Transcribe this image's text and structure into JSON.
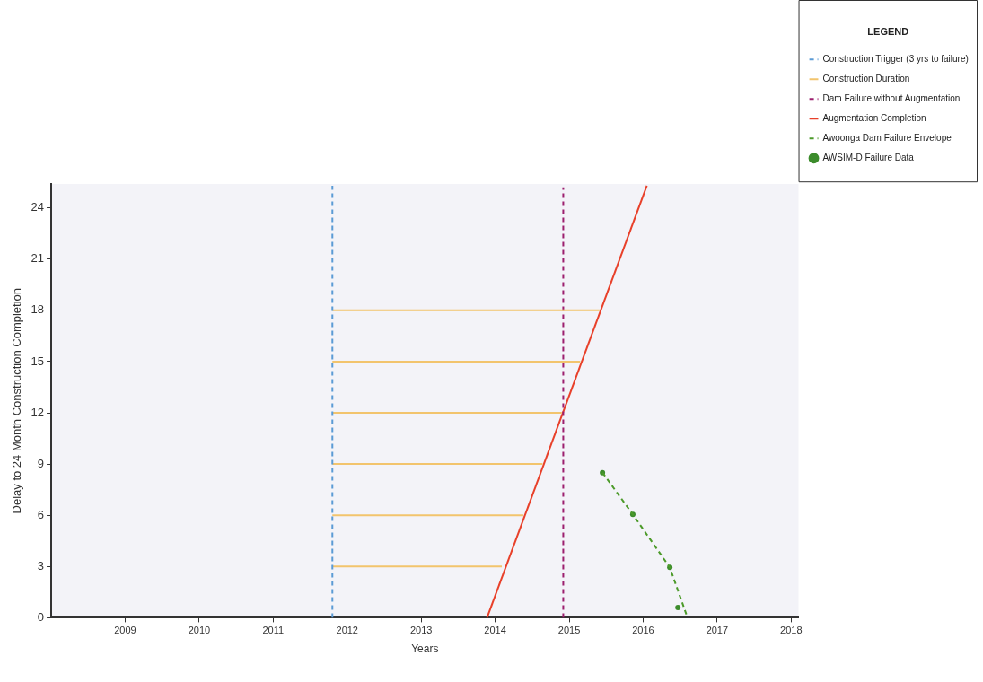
{
  "chart_data": {
    "type": "line",
    "xlabel": "Years",
    "ylabel": "Delay to 24 Month Construction Completion",
    "legend_title": "LEGEND",
    "legend": "top right",
    "grid": false,
    "marker": "none",
    "xlim": [
      2008,
      2018.1
    ],
    "xticks": [
      2009,
      2010,
      2011,
      2012,
      2013,
      2014,
      2015,
      2016,
      2017,
      2018
    ],
    "ylim": [
      0,
      25.4
    ],
    "yticks": [
      0,
      3,
      6,
      9,
      12,
      15,
      18,
      21,
      24
    ],
    "series": [
      {
        "name": "Construction Trigger\n(3 yrs to failure)",
        "color": "#5b9bd5",
        "line_style": "dashed",
        "x": [
          2011.8,
          2011.8
        ],
        "values": [
          0,
          25.3
        ]
      },
      {
        "name": "Construction Duration",
        "color": "#f2c46d",
        "line_style": "solid",
        "x": [
          2011.8,
          2014.09
        ],
        "values": [
          3,
          3
        ]
      },
      {
        "color": "#f2c46d",
        "line_style": "solid",
        "x": [
          2011.8,
          2014.38
        ],
        "values": [
          6,
          6
        ]
      },
      {
        "color": "#f2c46d",
        "line_style": "solid",
        "x": [
          2011.8,
          2014.64
        ],
        "values": [
          9,
          9
        ]
      },
      {
        "color": "#f2c46d",
        "line_style": "solid",
        "x": [
          2011.8,
          2014.9
        ],
        "values": [
          12,
          12
        ]
      },
      {
        "color": "#f2c46d",
        "line_style": "solid",
        "x": [
          2011.8,
          2015.15
        ],
        "values": [
          15,
          15
        ]
      },
      {
        "color": "#f2c46d",
        "line_style": "solid",
        "x": [
          2011.8,
          2015.41
        ],
        "values": [
          18,
          18
        ]
      },
      {
        "name": "Dam Failure without\nAugmentation",
        "color": "#9c1f6e",
        "line_style": "dashed",
        "x": [
          2014.92,
          2014.92
        ],
        "values": [
          0,
          25.2
        ]
      },
      {
        "name": "Augmentation Completion",
        "color": "#e8402a",
        "line_style": "solid",
        "x": [
          2013.89,
          2016.05
        ],
        "values": [
          0,
          25.3
        ]
      },
      {
        "name": "Awoonga Dam Failure Envelope",
        "color": "#4c9a2a",
        "line_style": "dashed",
        "x": [
          2015.45,
          2015.86,
          2016.36,
          2016.6
        ],
        "values": [
          8.5,
          6.05,
          2.95,
          0
        ]
      },
      {
        "name": "AWSIM-D Failure Data",
        "type": "scatter",
        "marker": "circle",
        "color": "#3c8c2c",
        "x": [
          2015.45,
          2015.86,
          2016.36,
          2016.47
        ],
        "values": [
          8.5,
          6.05,
          2.95,
          0.6
        ]
      }
    ]
  }
}
